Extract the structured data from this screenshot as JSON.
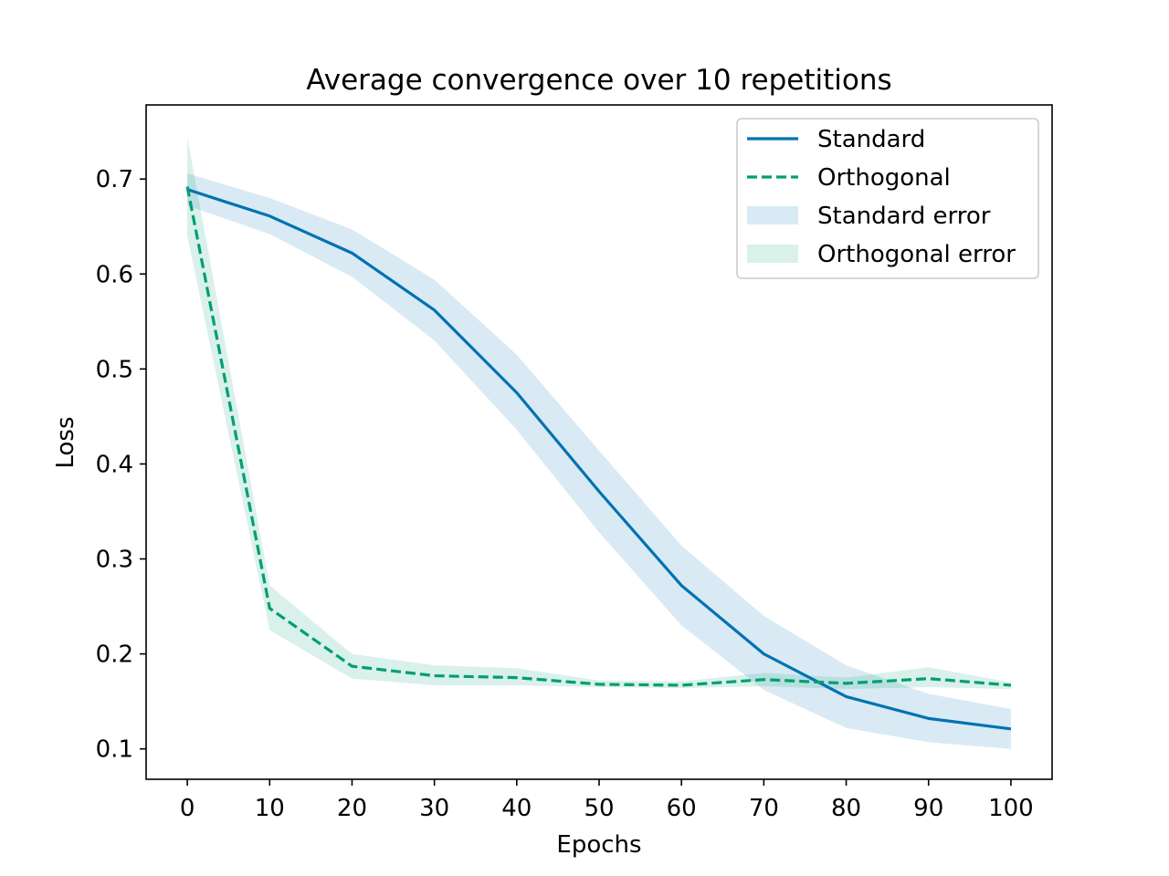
{
  "chart_data": {
    "type": "line",
    "title": "Average convergence over 10 repetitions",
    "xlabel": "Epochs",
    "ylabel": "Loss",
    "xlim": [
      -5,
      105
    ],
    "ylim": [
      0.068,
      0.778
    ],
    "xticks": [
      0,
      10,
      20,
      30,
      40,
      50,
      60,
      70,
      80,
      90,
      100
    ],
    "yticks": [
      0.1,
      0.2,
      0.3,
      0.4,
      0.5,
      0.6,
      0.7
    ],
    "xtick_labels": [
      "0",
      "10",
      "20",
      "30",
      "40",
      "50",
      "60",
      "70",
      "80",
      "90",
      "100"
    ],
    "ytick_labels": [
      "0.1",
      "0.2",
      "0.3",
      "0.4",
      "0.5",
      "0.6",
      "0.7"
    ],
    "grid": false,
    "legend_position": "top-right",
    "x": [
      0,
      10,
      20,
      30,
      40,
      50,
      60,
      70,
      80,
      90,
      100
    ],
    "series": [
      {
        "name": "Standard",
        "error_name": "Standard error",
        "color": "#0072b2",
        "band_color": "#0072b2",
        "linestyle": "solid",
        "values": [
          0.689,
          0.661,
          0.622,
          0.562,
          0.475,
          0.371,
          0.272,
          0.2,
          0.155,
          0.132,
          0.121
        ],
        "lower": [
          0.672,
          0.642,
          0.597,
          0.53,
          0.436,
          0.328,
          0.23,
          0.162,
          0.122,
          0.107,
          0.1
        ],
        "upper": [
          0.706,
          0.68,
          0.647,
          0.594,
          0.515,
          0.414,
          0.314,
          0.24,
          0.188,
          0.158,
          0.142
        ]
      },
      {
        "name": "Orthogonal",
        "error_name": "Orthogonal error",
        "color": "#009e73",
        "band_color": "#009e73",
        "linestyle": "dashed",
        "values": [
          0.692,
          0.248,
          0.187,
          0.177,
          0.175,
          0.168,
          0.167,
          0.173,
          0.169,
          0.174,
          0.167
        ],
        "lower": [
          0.64,
          0.225,
          0.174,
          0.167,
          0.167,
          0.165,
          0.164,
          0.166,
          0.163,
          0.165,
          0.163
        ],
        "upper": [
          0.744,
          0.272,
          0.2,
          0.188,
          0.185,
          0.172,
          0.171,
          0.18,
          0.175,
          0.186,
          0.17
        ]
      }
    ]
  }
}
